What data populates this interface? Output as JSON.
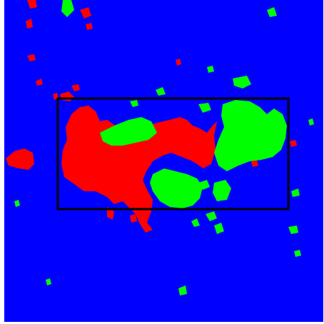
{
  "image": {
    "kind": "segmentation-mask",
    "colors": {
      "background": "#0000ff",
      "class_a": "#ff0000",
      "class_b": "#00ff00",
      "box_outline": "#000000",
      "border": "#ffffff"
    }
  },
  "regions": [
    {
      "label_key": "red-blob-main",
      "color_key": "class_a"
    },
    {
      "label_key": "green-blob-right",
      "color_key": "class_b"
    },
    {
      "label_key": "green-blob-center",
      "color_key": "class_b"
    },
    {
      "label_key": "green-blob-left",
      "color_key": "class_b"
    }
  ],
  "overlay": {
    "type": "rectangle",
    "label_key": "bounding-box"
  }
}
